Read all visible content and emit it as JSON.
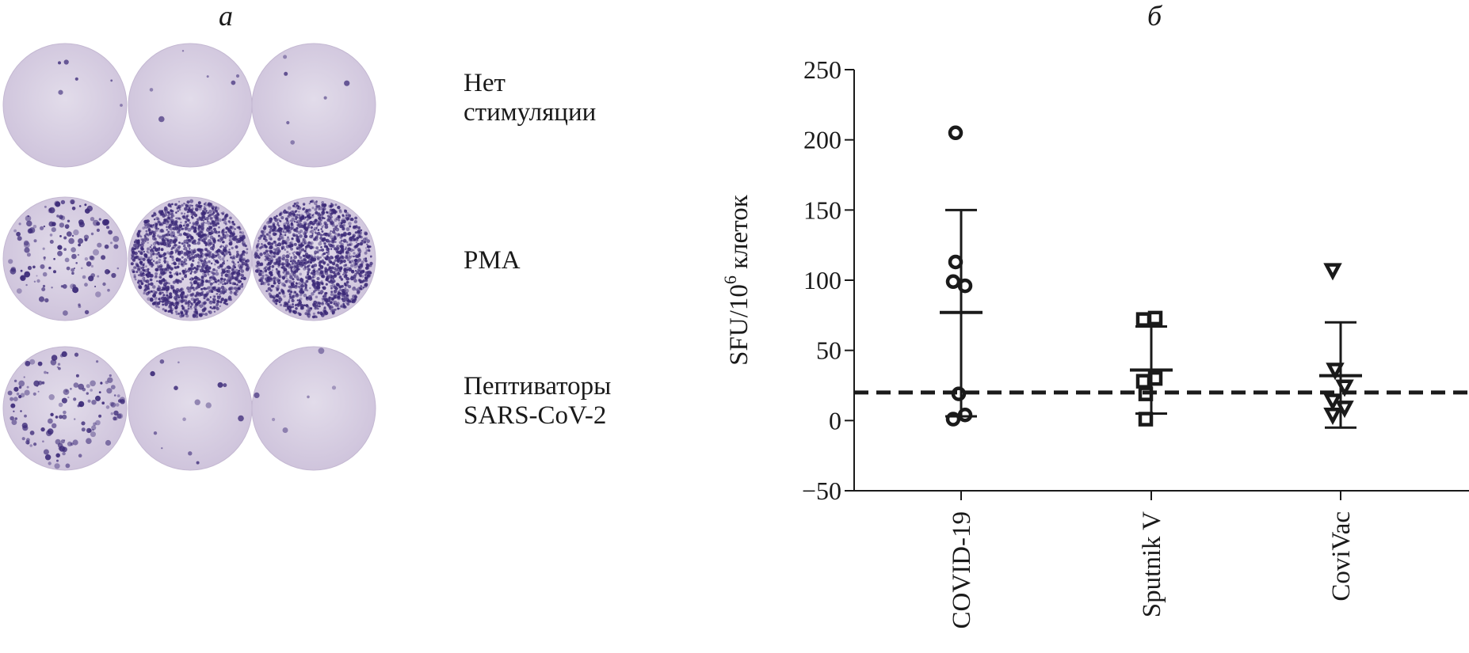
{
  "panel_a": {
    "label": "а",
    "rows": [
      {
        "label_lines": [
          "Нет",
          "стимуляции"
        ],
        "wells": [
          {
            "spot_density": "none"
          },
          {
            "spot_density": "none"
          },
          {
            "spot_density": "none"
          }
        ]
      },
      {
        "label_lines": [
          "PMA"
        ],
        "wells": [
          {
            "spot_density": "moderate"
          },
          {
            "spot_density": "dense"
          },
          {
            "spot_density": "dense"
          }
        ]
      },
      {
        "label_lines": [
          "Пептиваторы",
          "SARS-CoV-2"
        ],
        "wells": [
          {
            "spot_density": "moderate"
          },
          {
            "spot_density": "sparse"
          },
          {
            "spot_density": "none"
          }
        ]
      }
    ],
    "colors": {
      "well": "#d8cfe0",
      "spot": "#3c2a78"
    }
  },
  "panel_b": {
    "label": "б",
    "chart_data": {
      "type": "scatter",
      "ylabel": "SFU/10",
      "ylabel_sup": "6",
      "ylabel_suffix": " клеток",
      "ylim": [
        -50,
        250
      ],
      "yticks": [
        -50,
        0,
        50,
        100,
        150,
        200,
        250
      ],
      "threshold": 20,
      "categories": [
        "COVID-19",
        "Sputnik V",
        "CoviVac"
      ],
      "series": [
        {
          "category": "COVID-19",
          "marker": "circle",
          "points": [
            [
              -0.07,
              205
            ],
            [
              -0.07,
              113
            ],
            [
              -0.1,
              99
            ],
            [
              0.05,
              96
            ],
            [
              -0.03,
              19
            ],
            [
              -0.1,
              1
            ],
            [
              0.05,
              4
            ]
          ],
          "mean": 77,
          "err_low": 3,
          "err_high": 150
        },
        {
          "category": "Sputnik V",
          "marker": "square",
          "points": [
            [
              -0.1,
              72
            ],
            [
              0.05,
              73
            ],
            [
              -0.1,
              28
            ],
            [
              0.05,
              30
            ],
            [
              -0.07,
              19
            ],
            [
              -0.07,
              1
            ]
          ],
          "mean": 36,
          "err_low": 5,
          "err_high": 67
        },
        {
          "category": "CoviVac",
          "marker": "triangle-down",
          "points": [
            [
              -0.1,
              107
            ],
            [
              -0.07,
              36
            ],
            [
              0.05,
              24
            ],
            [
              -0.1,
              14
            ],
            [
              -0.1,
              4
            ],
            [
              0.05,
              9
            ]
          ],
          "mean": 32,
          "err_low": -5,
          "err_high": 70
        }
      ]
    }
  }
}
